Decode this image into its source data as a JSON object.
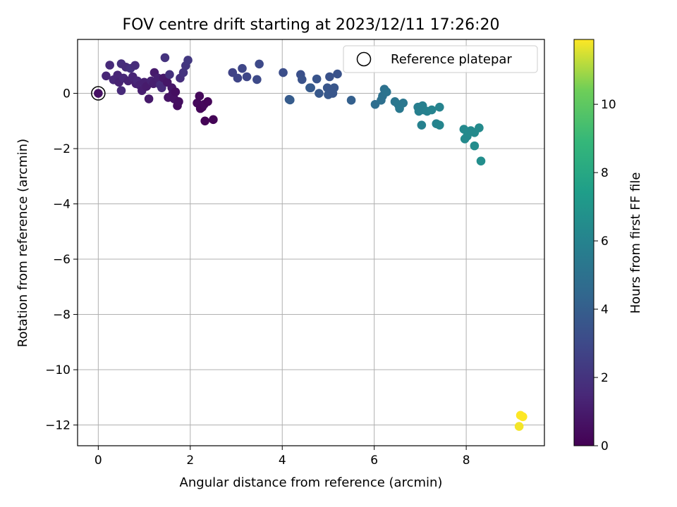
{
  "chart_data": {
    "type": "scatter",
    "title": "FOV centre drift starting at 2023/12/11 17:26:20",
    "xlabel": "Angular distance from reference (arcmin)",
    "ylabel": "Rotation from reference (arcmin)",
    "xlim": [
      -0.45,
      9.7
    ],
    "ylim": [
      -12.75,
      1.95
    ],
    "xticks": [
      0,
      2,
      4,
      6,
      8
    ],
    "yticks": [
      0,
      -2,
      -4,
      -6,
      -8,
      -10,
      -12
    ],
    "grid": true,
    "legend": {
      "position": "top-right",
      "entries": [
        "Reference platepar"
      ]
    },
    "reference_point": {
      "x": 0,
      "y": 0
    },
    "colorbar": {
      "label": "Hours from first FF file",
      "range": [
        0,
        11.9
      ],
      "ticks": [
        0,
        2,
        4,
        6,
        8,
        10
      ],
      "colormap": "viridis"
    },
    "points": [
      {
        "x": 0.0,
        "y": 0.0,
        "c": 0.6
      },
      {
        "x": 0.17,
        "y": 0.63,
        "c": 1.4
      },
      {
        "x": 0.25,
        "y": 1.02,
        "c": 1.6
      },
      {
        "x": 0.33,
        "y": 0.49,
        "c": 1.5
      },
      {
        "x": 0.42,
        "y": 0.66,
        "c": 1.4
      },
      {
        "x": 0.45,
        "y": 0.4,
        "c": 1.3
      },
      {
        "x": 0.5,
        "y": 1.07,
        "c": 1.8
      },
      {
        "x": 0.5,
        "y": 0.1,
        "c": 1.6
      },
      {
        "x": 0.55,
        "y": 0.55,
        "c": 1.5
      },
      {
        "x": 0.6,
        "y": 0.95,
        "c": 1.7
      },
      {
        "x": 0.65,
        "y": 0.45,
        "c": 1.3
      },
      {
        "x": 0.7,
        "y": 0.9,
        "c": 1.9
      },
      {
        "x": 0.75,
        "y": 0.6,
        "c": 1.4
      },
      {
        "x": 0.8,
        "y": 1.01,
        "c": 1.7
      },
      {
        "x": 0.82,
        "y": 0.35,
        "c": 1.2
      },
      {
        "x": 0.85,
        "y": 0.45,
        "c": 1.5
      },
      {
        "x": 0.9,
        "y": 0.3,
        "c": 1.3
      },
      {
        "x": 0.95,
        "y": 0.1,
        "c": 1.1
      },
      {
        "x": 1.0,
        "y": 0.4,
        "c": 1.2
      },
      {
        "x": 1.05,
        "y": 0.25,
        "c": 1.0
      },
      {
        "x": 1.1,
        "y": -0.2,
        "c": 0.9
      },
      {
        "x": 1.15,
        "y": 0.45,
        "c": 1.3
      },
      {
        "x": 1.2,
        "y": 0.35,
        "c": 1.1
      },
      {
        "x": 1.22,
        "y": 0.75,
        "c": 1.0
      },
      {
        "x": 1.3,
        "y": 0.55,
        "c": 1.2
      },
      {
        "x": 1.35,
        "y": 0.3,
        "c": 1.7
      },
      {
        "x": 1.38,
        "y": 0.2,
        "c": 1.6
      },
      {
        "x": 1.42,
        "y": 0.55,
        "c": 0.9
      },
      {
        "x": 1.45,
        "y": 1.29,
        "c": 2.0
      },
      {
        "x": 1.5,
        "y": 0.4,
        "c": 0.8
      },
      {
        "x": 1.52,
        "y": -0.15,
        "c": 0.7
      },
      {
        "x": 1.55,
        "y": 0.68,
        "c": 1.9
      },
      {
        "x": 1.6,
        "y": 0.2,
        "c": 0.8
      },
      {
        "x": 1.62,
        "y": 0.0,
        "c": 0.7
      },
      {
        "x": 1.65,
        "y": -0.2,
        "c": 0.6
      },
      {
        "x": 1.68,
        "y": 0.05,
        "c": 0.5
      },
      {
        "x": 1.72,
        "y": -0.45,
        "c": 0.4
      },
      {
        "x": 1.75,
        "y": -0.3,
        "c": 0.5
      },
      {
        "x": 1.78,
        "y": 0.55,
        "c": 1.8
      },
      {
        "x": 1.85,
        "y": 0.75,
        "c": 2.0
      },
      {
        "x": 1.9,
        "y": 1.0,
        "c": 2.1
      },
      {
        "x": 1.95,
        "y": 1.2,
        "c": 2.2
      },
      {
        "x": 2.15,
        "y": -0.35,
        "c": 0.3
      },
      {
        "x": 2.2,
        "y": -0.1,
        "c": 0.3
      },
      {
        "x": 2.22,
        "y": -0.55,
        "c": 0.2
      },
      {
        "x": 2.26,
        "y": -0.5,
        "c": 0.2
      },
      {
        "x": 2.3,
        "y": -0.4,
        "c": 0.3
      },
      {
        "x": 2.32,
        "y": -1.0,
        "c": 0.1
      },
      {
        "x": 2.38,
        "y": -0.3,
        "c": 0.2
      },
      {
        "x": 2.5,
        "y": -0.95,
        "c": 0.1
      },
      {
        "x": 2.92,
        "y": 0.75,
        "c": 2.7
      },
      {
        "x": 3.03,
        "y": 0.55,
        "c": 2.8
      },
      {
        "x": 3.13,
        "y": 0.9,
        "c": 2.9
      },
      {
        "x": 3.23,
        "y": 0.6,
        "c": 2.9
      },
      {
        "x": 3.45,
        "y": 0.5,
        "c": 3.0
      },
      {
        "x": 3.5,
        "y": 1.06,
        "c": 3.0
      },
      {
        "x": 4.02,
        "y": 0.75,
        "c": 3.2
      },
      {
        "x": 4.15,
        "y": -0.22,
        "c": 3.8
      },
      {
        "x": 4.17,
        "y": -0.24,
        "c": 3.9
      },
      {
        "x": 4.4,
        "y": 0.68,
        "c": 3.3
      },
      {
        "x": 4.43,
        "y": 0.5,
        "c": 3.4
      },
      {
        "x": 4.6,
        "y": 0.2,
        "c": 3.9
      },
      {
        "x": 4.62,
        "y": 0.2,
        "c": 3.8
      },
      {
        "x": 4.75,
        "y": 0.52,
        "c": 3.5
      },
      {
        "x": 4.8,
        "y": 0.0,
        "c": 3.7
      },
      {
        "x": 4.98,
        "y": 0.2,
        "c": 3.6
      },
      {
        "x": 5.0,
        "y": -0.05,
        "c": 3.7
      },
      {
        "x": 5.03,
        "y": 0.6,
        "c": 3.4
      },
      {
        "x": 5.1,
        "y": 0.0,
        "c": 3.6
      },
      {
        "x": 5.13,
        "y": 0.2,
        "c": 3.6
      },
      {
        "x": 5.2,
        "y": 0.7,
        "c": 3.4
      },
      {
        "x": 5.5,
        "y": -0.25,
        "c": 4.1
      },
      {
        "x": 6.02,
        "y": -0.4,
        "c": 4.8
      },
      {
        "x": 6.15,
        "y": -0.25,
        "c": 4.9
      },
      {
        "x": 6.18,
        "y": -0.1,
        "c": 5.0
      },
      {
        "x": 6.22,
        "y": 0.15,
        "c": 5.0
      },
      {
        "x": 6.27,
        "y": 0.05,
        "c": 5.1
      },
      {
        "x": 6.45,
        "y": -0.3,
        "c": 5.2
      },
      {
        "x": 6.52,
        "y": -0.4,
        "c": 5.3
      },
      {
        "x": 6.55,
        "y": -0.55,
        "c": 5.4
      },
      {
        "x": 6.63,
        "y": -0.35,
        "c": 5.3
      },
      {
        "x": 6.95,
        "y": -0.5,
        "c": 5.7
      },
      {
        "x": 6.97,
        "y": -0.65,
        "c": 5.8
      },
      {
        "x": 7.03,
        "y": -1.15,
        "c": 5.9
      },
      {
        "x": 7.05,
        "y": -0.45,
        "c": 5.8
      },
      {
        "x": 7.08,
        "y": -0.6,
        "c": 5.8
      },
      {
        "x": 7.15,
        "y": -0.65,
        "c": 5.9
      },
      {
        "x": 7.25,
        "y": -0.6,
        "c": 6.0
      },
      {
        "x": 7.35,
        "y": -1.1,
        "c": 6.0
      },
      {
        "x": 7.42,
        "y": -1.15,
        "c": 6.1
      },
      {
        "x": 7.42,
        "y": -0.5,
        "c": 6.0
      },
      {
        "x": 7.95,
        "y": -1.3,
        "c": 6.3
      },
      {
        "x": 7.97,
        "y": -1.65,
        "c": 6.4
      },
      {
        "x": 8.02,
        "y": -1.55,
        "c": 6.3
      },
      {
        "x": 8.05,
        "y": -1.4,
        "c": 6.4
      },
      {
        "x": 8.1,
        "y": -1.35,
        "c": 6.3
      },
      {
        "x": 8.18,
        "y": -1.42,
        "c": 6.4
      },
      {
        "x": 8.18,
        "y": -1.9,
        "c": 6.5
      },
      {
        "x": 8.28,
        "y": -1.25,
        "c": 6.4
      },
      {
        "x": 8.32,
        "y": -2.45,
        "c": 6.6
      },
      {
        "x": 9.15,
        "y": -12.05,
        "c": 11.8
      },
      {
        "x": 9.18,
        "y": -11.65,
        "c": 11.9
      },
      {
        "x": 9.23,
        "y": -11.7,
        "c": 11.9
      }
    ]
  }
}
